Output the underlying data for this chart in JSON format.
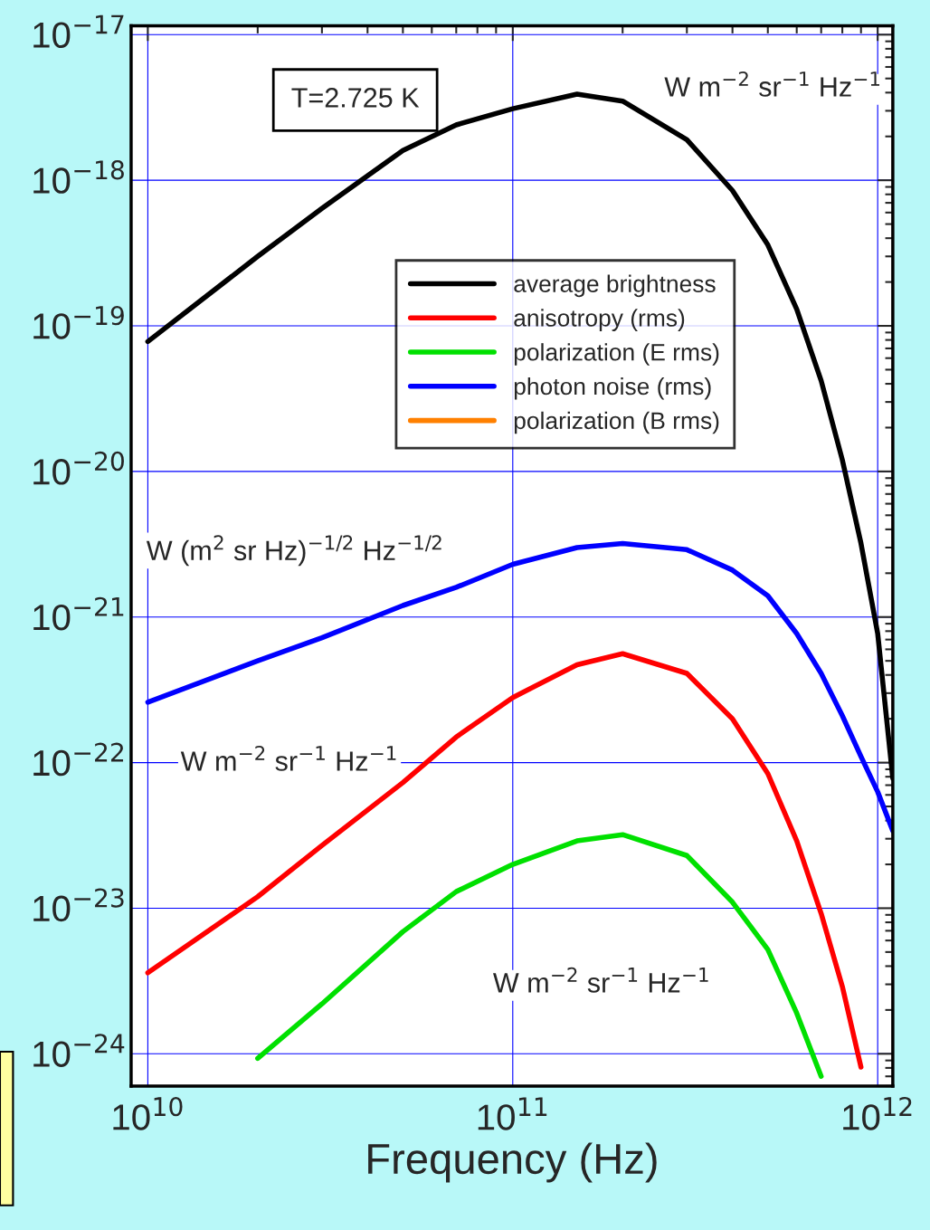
{
  "chart_data": {
    "type": "line",
    "xlabel": "Frequency (Hz)",
    "log": "xy",
    "grid": true,
    "legend": "top",
    "marker": "none",
    "line_style": "solid",
    "xlim": [
      9000000000.0,
      1100000000000.0
    ],
    "ylim": [
      6e-25,
      1.15e-17
    ],
    "xticks": [
      {
        "value": 10000000000.0,
        "label": "10$^{10}$"
      },
      {
        "value": 100000000000.0,
        "label": "10$^{11}$"
      },
      {
        "value": 1000000000000.0,
        "label": "10$^{12}$"
      }
    ],
    "yticks": [
      {
        "value": 1e-24,
        "label": "10$^{−24}$"
      },
      {
        "value": 1e-23,
        "label": "10$^{−23}$"
      },
      {
        "value": 1e-22,
        "label": "10$^{−22}$"
      },
      {
        "value": 1e-21,
        "label": "10$^{−21}$"
      },
      {
        "value": 1e-20,
        "label": "10$^{−20}$"
      },
      {
        "value": 1e-19,
        "label": "10$^{−19}$"
      },
      {
        "value": 1e-18,
        "label": "10$^{−18}$"
      },
      {
        "value": 1e-17,
        "label": "10$^{−17}$"
      }
    ],
    "series": [
      {
        "name": "average brightness",
        "color": "#000000",
        "x": [
          10000000000.0,
          20000000000.0,
          30000000000.0,
          50000000000.0,
          70000000000.0,
          100000000000.0,
          150000000000.0,
          200000000000.0,
          300000000000.0,
          400000000000.0,
          500000000000.0,
          600000000000.0,
          700000000000.0,
          800000000000.0,
          900000000000.0,
          1000000000000.0,
          1100000000000.0
        ],
        "values": [
          7.8e-20,
          3e-19,
          6.4e-19,
          1.6e-18,
          2.4e-18,
          3.1e-18,
          3.9e-18,
          3.5e-18,
          1.9e-18,
          8.5e-19,
          3.6e-19,
          1.3e-19,
          4.2e-20,
          1.2e-20,
          3.2e-21,
          7.7e-22,
          7.8e-23
        ]
      },
      {
        "name": "anisotropy (rms)",
        "color": "#ff0000",
        "x": [
          10000000000.0,
          20000000000.0,
          30000000000.0,
          50000000000.0,
          70000000000.0,
          100000000000.0,
          150000000000.0,
          200000000000.0,
          300000000000.0,
          400000000000.0,
          500000000000.0,
          600000000000.0,
          700000000000.0,
          800000000000.0,
          900000000000.0
        ],
        "values": [
          3.6e-24,
          1.2e-23,
          2.7e-23,
          7.3e-23,
          1.5e-22,
          2.8e-22,
          4.7e-22,
          5.6e-22,
          4.1e-22,
          2e-22,
          8.4e-23,
          2.9e-23,
          9.2e-24,
          2.9e-24,
          8.1e-25
        ]
      },
      {
        "name": "polarization (E rms)",
        "color": "#00e000",
        "x": [
          20000000000.0,
          30000000000.0,
          50000000000.0,
          70000000000.0,
          100000000000.0,
          150000000000.0,
          200000000000.0,
          300000000000.0,
          400000000000.0,
          500000000000.0,
          600000000000.0,
          700000000000.0
        ],
        "values": [
          9.3e-25,
          2.2e-24,
          6.9e-24,
          1.3e-23,
          2e-23,
          2.9e-23,
          3.2e-23,
          2.3e-23,
          1.1e-23,
          5.2e-24,
          1.9e-24,
          7e-25
        ]
      },
      {
        "name": "photon noise (rms)",
        "color": "#0000ff",
        "x": [
          10000000000.0,
          20000000000.0,
          30000000000.0,
          50000000000.0,
          70000000000.0,
          100000000000.0,
          150000000000.0,
          200000000000.0,
          300000000000.0,
          400000000000.0,
          500000000000.0,
          600000000000.0,
          700000000000.0,
          800000000000.0,
          900000000000.0,
          1000000000000.0,
          1100000000000.0
        ],
        "values": [
          2.6e-22,
          5e-22,
          7.2e-22,
          1.2e-21,
          1.6e-21,
          2.3e-21,
          3e-21,
          3.2e-21,
          2.9e-21,
          2.1e-21,
          1.4e-21,
          7.7e-22,
          4.1e-22,
          2.1e-22,
          1.1e-22,
          6.3e-23,
          3.4e-23
        ]
      },
      {
        "name": "polarization (B rms)",
        "color": "#ff8000"
      }
    ],
    "annotations": [
      "T=2.725 K",
      "W m$^{−2}$ sr$^{−1}$ Hz$^{−1}$",
      "W (m$^{2}$ sr Hz)$^{−1/2}$ Hz$^{−1/2}$",
      "W m$^{−2}$ sr$^{−1}$ Hz$^{−1}$",
      "W m$^{−2}$ sr$^{−1}$ Hz$^{−1}$"
    ]
  }
}
